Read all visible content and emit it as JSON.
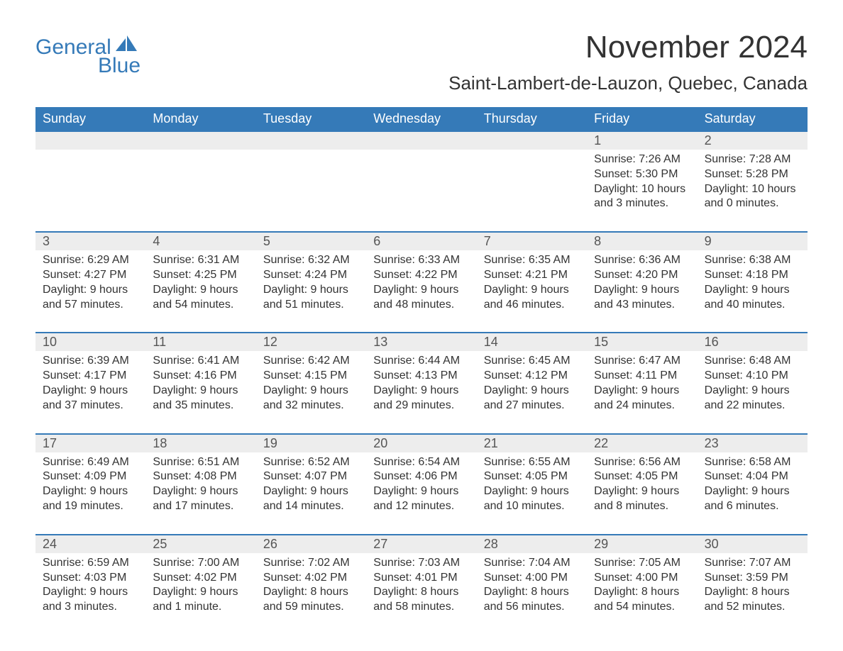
{
  "brand": {
    "word1": "General",
    "word2": "Blue",
    "color": "#357ab8"
  },
  "title": "November 2024",
  "location": "Saint-Lambert-de-Lauzon, Quebec, Canada",
  "styling": {
    "header_bg": "#357ab8",
    "header_text": "#ffffff",
    "daynum_bg": "#ededed",
    "daynum_border": "#357ab8",
    "body_text": "#333333",
    "font": "Arial",
    "title_fontsize": 44,
    "location_fontsize": 26,
    "header_fontsize": 18,
    "body_fontsize": 16
  },
  "weekdays": [
    "Sunday",
    "Monday",
    "Tuesday",
    "Wednesday",
    "Thursday",
    "Friday",
    "Saturday"
  ],
  "weeks": [
    [
      null,
      null,
      null,
      null,
      null,
      {
        "num": "1",
        "sunrise": "7:26 AM",
        "sunset": "5:30 PM",
        "daylight": "10 hours and 3 minutes."
      },
      {
        "num": "2",
        "sunrise": "7:28 AM",
        "sunset": "5:28 PM",
        "daylight": "10 hours and 0 minutes."
      }
    ],
    [
      {
        "num": "3",
        "sunrise": "6:29 AM",
        "sunset": "4:27 PM",
        "daylight": "9 hours and 57 minutes."
      },
      {
        "num": "4",
        "sunrise": "6:31 AM",
        "sunset": "4:25 PM",
        "daylight": "9 hours and 54 minutes."
      },
      {
        "num": "5",
        "sunrise": "6:32 AM",
        "sunset": "4:24 PM",
        "daylight": "9 hours and 51 minutes."
      },
      {
        "num": "6",
        "sunrise": "6:33 AM",
        "sunset": "4:22 PM",
        "daylight": "9 hours and 48 minutes."
      },
      {
        "num": "7",
        "sunrise": "6:35 AM",
        "sunset": "4:21 PM",
        "daylight": "9 hours and 46 minutes."
      },
      {
        "num": "8",
        "sunrise": "6:36 AM",
        "sunset": "4:20 PM",
        "daylight": "9 hours and 43 minutes."
      },
      {
        "num": "9",
        "sunrise": "6:38 AM",
        "sunset": "4:18 PM",
        "daylight": "9 hours and 40 minutes."
      }
    ],
    [
      {
        "num": "10",
        "sunrise": "6:39 AM",
        "sunset": "4:17 PM",
        "daylight": "9 hours and 37 minutes."
      },
      {
        "num": "11",
        "sunrise": "6:41 AM",
        "sunset": "4:16 PM",
        "daylight": "9 hours and 35 minutes."
      },
      {
        "num": "12",
        "sunrise": "6:42 AM",
        "sunset": "4:15 PM",
        "daylight": "9 hours and 32 minutes."
      },
      {
        "num": "13",
        "sunrise": "6:44 AM",
        "sunset": "4:13 PM",
        "daylight": "9 hours and 29 minutes."
      },
      {
        "num": "14",
        "sunrise": "6:45 AM",
        "sunset": "4:12 PM",
        "daylight": "9 hours and 27 minutes."
      },
      {
        "num": "15",
        "sunrise": "6:47 AM",
        "sunset": "4:11 PM",
        "daylight": "9 hours and 24 minutes."
      },
      {
        "num": "16",
        "sunrise": "6:48 AM",
        "sunset": "4:10 PM",
        "daylight": "9 hours and 22 minutes."
      }
    ],
    [
      {
        "num": "17",
        "sunrise": "6:49 AM",
        "sunset": "4:09 PM",
        "daylight": "9 hours and 19 minutes."
      },
      {
        "num": "18",
        "sunrise": "6:51 AM",
        "sunset": "4:08 PM",
        "daylight": "9 hours and 17 minutes."
      },
      {
        "num": "19",
        "sunrise": "6:52 AM",
        "sunset": "4:07 PM",
        "daylight": "9 hours and 14 minutes."
      },
      {
        "num": "20",
        "sunrise": "6:54 AM",
        "sunset": "4:06 PM",
        "daylight": "9 hours and 12 minutes."
      },
      {
        "num": "21",
        "sunrise": "6:55 AM",
        "sunset": "4:05 PM",
        "daylight": "9 hours and 10 minutes."
      },
      {
        "num": "22",
        "sunrise": "6:56 AM",
        "sunset": "4:05 PM",
        "daylight": "9 hours and 8 minutes."
      },
      {
        "num": "23",
        "sunrise": "6:58 AM",
        "sunset": "4:04 PM",
        "daylight": "9 hours and 6 minutes."
      }
    ],
    [
      {
        "num": "24",
        "sunrise": "6:59 AM",
        "sunset": "4:03 PM",
        "daylight": "9 hours and 3 minutes."
      },
      {
        "num": "25",
        "sunrise": "7:00 AM",
        "sunset": "4:02 PM",
        "daylight": "9 hours and 1 minute."
      },
      {
        "num": "26",
        "sunrise": "7:02 AM",
        "sunset": "4:02 PM",
        "daylight": "8 hours and 59 minutes."
      },
      {
        "num": "27",
        "sunrise": "7:03 AM",
        "sunset": "4:01 PM",
        "daylight": "8 hours and 58 minutes."
      },
      {
        "num": "28",
        "sunrise": "7:04 AM",
        "sunset": "4:00 PM",
        "daylight": "8 hours and 56 minutes."
      },
      {
        "num": "29",
        "sunrise": "7:05 AM",
        "sunset": "4:00 PM",
        "daylight": "8 hours and 54 minutes."
      },
      {
        "num": "30",
        "sunrise": "7:07 AM",
        "sunset": "3:59 PM",
        "daylight": "8 hours and 52 minutes."
      }
    ]
  ],
  "labels": {
    "sunrise": "Sunrise: ",
    "sunset": "Sunset: ",
    "daylight": "Daylight: "
  }
}
